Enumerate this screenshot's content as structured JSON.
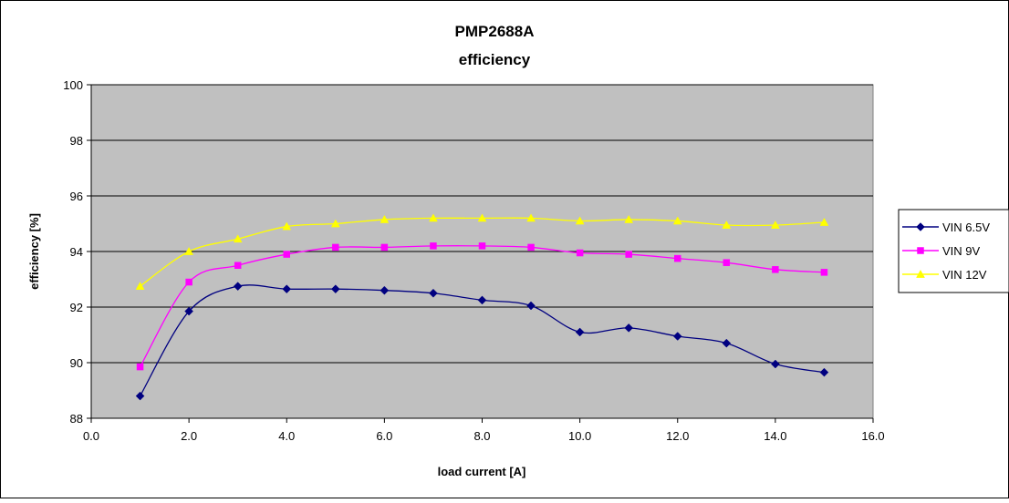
{
  "chart_data": {
    "type": "line",
    "title": "PMP2688A",
    "subtitle": "efficiency",
    "xlabel": "load current [A]",
    "ylabel": "efficiency [%]",
    "xlim": [
      0,
      16
    ],
    "ylim": [
      88,
      100
    ],
    "x_ticks": [
      "0.0",
      "2.0",
      "4.0",
      "6.0",
      "8.0",
      "10.0",
      "12.0",
      "14.0",
      "16.0"
    ],
    "y_ticks": [
      "88",
      "90",
      "92",
      "94",
      "96",
      "98",
      "100"
    ],
    "grid": true,
    "plot_background": "#c0c0c0",
    "legend_position": "right",
    "x": [
      1,
      2,
      3,
      4,
      5,
      6,
      7,
      8,
      9,
      10,
      11,
      12,
      13,
      14,
      15
    ],
    "series": [
      {
        "name": "VIN 6.5V",
        "color": "#000080",
        "marker": "diamond",
        "values": [
          88.8,
          91.85,
          92.75,
          92.65,
          92.65,
          92.6,
          92.5,
          92.25,
          92.05,
          91.1,
          91.25,
          90.95,
          90.7,
          89.95,
          89.65
        ]
      },
      {
        "name": "VIN 9V",
        "color": "#ff00ff",
        "marker": "square",
        "values": [
          89.85,
          92.9,
          93.5,
          93.9,
          94.15,
          94.15,
          94.2,
          94.2,
          94.15,
          93.95,
          93.9,
          93.75,
          93.6,
          93.35,
          93.25
        ]
      },
      {
        "name": "VIN 12V",
        "color": "#ffff00",
        "marker": "triangle",
        "values": [
          92.75,
          94.0,
          94.45,
          94.9,
          95.0,
          95.15,
          95.2,
          95.2,
          95.2,
          95.1,
          95.15,
          95.1,
          94.95,
          94.95,
          95.05
        ]
      }
    ]
  }
}
